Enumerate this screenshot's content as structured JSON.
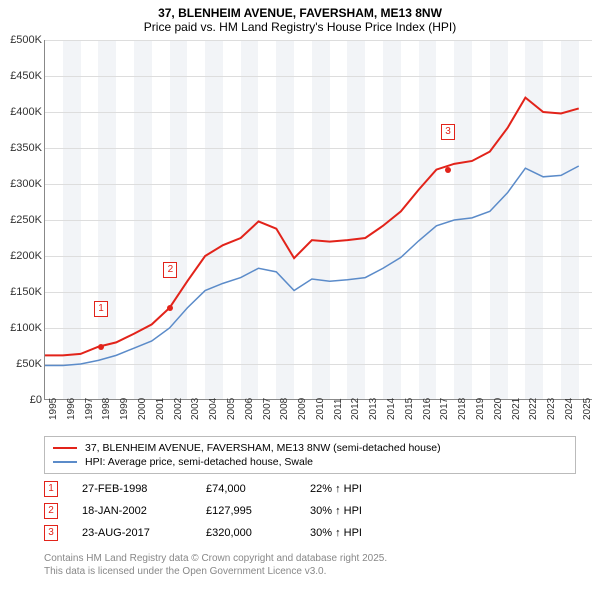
{
  "title": "37, BLENHEIM AVENUE, FAVERSHAM, ME13 8NW",
  "subtitle": "Price paid vs. HM Land Registry's House Price Index (HPI)",
  "chart": {
    "type": "line",
    "xlim": [
      1995,
      2025.8
    ],
    "ylim": [
      0,
      500000
    ],
    "ytick_step": 50000,
    "yticks": [
      "£0",
      "£50K",
      "£100K",
      "£150K",
      "£200K",
      "£250K",
      "£300K",
      "£350K",
      "£400K",
      "£450K",
      "£500K"
    ],
    "xticks": [
      "1995",
      "1996",
      "1997",
      "1998",
      "1999",
      "2000",
      "2001",
      "2002",
      "2003",
      "2004",
      "2005",
      "2006",
      "2007",
      "2008",
      "2009",
      "2010",
      "2011",
      "2012",
      "2013",
      "2014",
      "2015",
      "2016",
      "2017",
      "2018",
      "2019",
      "2020",
      "2021",
      "2022",
      "2023",
      "2024",
      "2025"
    ],
    "band_color": "#f2f4f7",
    "grid_color": "#dddddd",
    "series": {
      "s1": {
        "label": "37, BLENHEIM AVENUE, FAVERSHAM, ME13 8NW (semi-detached house)",
        "color": "#e2231a",
        "width": 2,
        "points": [
          [
            1995,
            62000
          ],
          [
            1996,
            62000
          ],
          [
            1997,
            64000
          ],
          [
            1998,
            74000
          ],
          [
            1999,
            80000
          ],
          [
            2000,
            92000
          ],
          [
            2001,
            105000
          ],
          [
            2002,
            127995
          ],
          [
            2003,
            165000
          ],
          [
            2004,
            200000
          ],
          [
            2005,
            215000
          ],
          [
            2006,
            225000
          ],
          [
            2007,
            248000
          ],
          [
            2008,
            238000
          ],
          [
            2009,
            197000
          ],
          [
            2010,
            222000
          ],
          [
            2011,
            220000
          ],
          [
            2012,
            222000
          ],
          [
            2013,
            225000
          ],
          [
            2014,
            242000
          ],
          [
            2015,
            262000
          ],
          [
            2016,
            292000
          ],
          [
            2017,
            320000
          ],
          [
            2018,
            328000
          ],
          [
            2019,
            332000
          ],
          [
            2020,
            345000
          ],
          [
            2021,
            378000
          ],
          [
            2022,
            420000
          ],
          [
            2023,
            400000
          ],
          [
            2024,
            398000
          ],
          [
            2025,
            405000
          ]
        ]
      },
      "s2": {
        "label": "HPI: Average price, semi-detached house, Swale",
        "color": "#5b8bc9",
        "width": 1.5,
        "points": [
          [
            1995,
            48000
          ],
          [
            1996,
            48000
          ],
          [
            1997,
            50000
          ],
          [
            1998,
            55000
          ],
          [
            1999,
            62000
          ],
          [
            2000,
            72000
          ],
          [
            2001,
            82000
          ],
          [
            2002,
            100000
          ],
          [
            2003,
            128000
          ],
          [
            2004,
            152000
          ],
          [
            2005,
            162000
          ],
          [
            2006,
            170000
          ],
          [
            2007,
            183000
          ],
          [
            2008,
            178000
          ],
          [
            2009,
            152000
          ],
          [
            2010,
            168000
          ],
          [
            2011,
            165000
          ],
          [
            2012,
            167000
          ],
          [
            2013,
            170000
          ],
          [
            2014,
            183000
          ],
          [
            2015,
            198000
          ],
          [
            2016,
            221000
          ],
          [
            2017,
            242000
          ],
          [
            2018,
            250000
          ],
          [
            2019,
            253000
          ],
          [
            2020,
            262000
          ],
          [
            2021,
            288000
          ],
          [
            2022,
            322000
          ],
          [
            2023,
            310000
          ],
          [
            2024,
            312000
          ],
          [
            2025,
            325000
          ]
        ]
      }
    },
    "markers": [
      {
        "num": "1",
        "year": 1998.15,
        "price": 74000,
        "color": "#e2231a"
      },
      {
        "num": "2",
        "year": 2002.05,
        "price": 127995,
        "color": "#e2231a"
      },
      {
        "num": "3",
        "year": 2017.65,
        "price": 320000,
        "color": "#e2231a"
      }
    ]
  },
  "legend": {
    "r1": {
      "color": "#e2231a",
      "label": "37, BLENHEIM AVENUE, FAVERSHAM, ME13 8NW (semi-detached house)"
    },
    "r2": {
      "color": "#5b8bc9",
      "label": "HPI: Average price, semi-detached house, Swale"
    }
  },
  "transactions": [
    {
      "num": "1",
      "color": "#e2231a",
      "date": "27-FEB-1998",
      "price": "£74,000",
      "delta": "22% ↑ HPI"
    },
    {
      "num": "2",
      "color": "#e2231a",
      "date": "18-JAN-2002",
      "price": "£127,995",
      "delta": "30% ↑ HPI"
    },
    {
      "num": "3",
      "color": "#e2231a",
      "date": "23-AUG-2017",
      "price": "£320,000",
      "delta": "30% ↑ HPI"
    }
  ],
  "attribution": {
    "l1": "Contains HM Land Registry data © Crown copyright and database right 2025.",
    "l2": "This data is licensed under the Open Government Licence v3.0."
  }
}
